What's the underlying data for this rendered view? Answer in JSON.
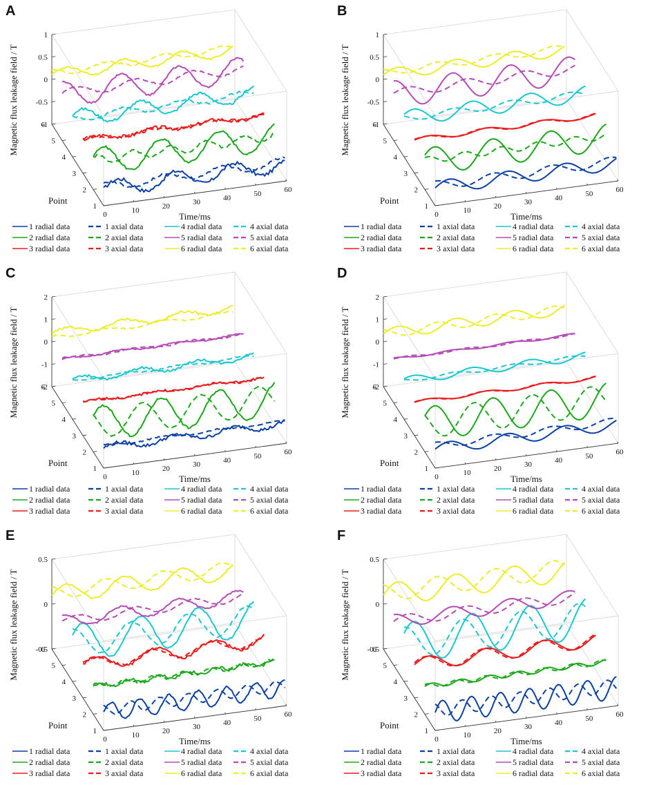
{
  "figure": {
    "labels": {
      "zlabel": "Magnetic flux leakage field  / T",
      "xlabel": "Time/ms",
      "ylabel": "Point"
    },
    "colors": {
      "1": "#0a3fa8",
      "2": "#18a818",
      "3": "#ee1a1a",
      "4": "#18c8d0",
      "5": "#b64ab6",
      "6": "#eded28"
    }
  },
  "legend": {
    "entries": [
      {
        "label": "1 radial data",
        "point": 1,
        "style": "solid"
      },
      {
        "label": "1 axial data",
        "point": 1,
        "style": "dashed"
      },
      {
        "label": "4 radial data",
        "point": 4,
        "style": "solid"
      },
      {
        "label": "4 axial data",
        "point": 4,
        "style": "dashed"
      },
      {
        "label": "2 radial data",
        "point": 2,
        "style": "solid"
      },
      {
        "label": "2 axial data",
        "point": 2,
        "style": "dashed"
      },
      {
        "label": "5 radial data",
        "point": 5,
        "style": "solid"
      },
      {
        "label": "5 axial data",
        "point": 5,
        "style": "dashed"
      },
      {
        "label": "3 radial data",
        "point": 3,
        "style": "solid"
      },
      {
        "label": "3 axial data",
        "point": 3,
        "style": "dashed"
      },
      {
        "label": "6 radial data",
        "point": 6,
        "style": "solid"
      },
      {
        "label": "6 axial data",
        "point": 6,
        "style": "dashed"
      }
    ]
  },
  "chart_data": [
    {
      "panel": "A",
      "type": "line3d",
      "xlabel": "Time/ms",
      "ylabel": "Point",
      "zlabel": "Magnetic flux leakage field  / T",
      "xlim": [
        0,
        60
      ],
      "ylim": [
        1,
        6
      ],
      "zlim": [
        -1,
        1
      ],
      "xticks": [
        "0",
        "10",
        "20",
        "30",
        "40",
        "50",
        "60"
      ],
      "yticks": [
        "1",
        "2",
        "3",
        "4",
        "5",
        "6"
      ],
      "zticks": [
        "-1",
        "-0.5",
        "0",
        "0.5",
        "1"
      ],
      "series": [
        {
          "name": "1 radial data",
          "point": 1,
          "amp": 0.35,
          "period": 19,
          "phase": 0,
          "offset": -0.25,
          "noise": 0.08
        },
        {
          "name": "1 axial data",
          "point": 1,
          "amp": 0.2,
          "period": 19,
          "phase": 1.2,
          "offset": -0.15,
          "noise": 0.05
        },
        {
          "name": "2 radial data",
          "point": 2,
          "amp": 0.6,
          "period": 19,
          "phase": 0.5,
          "offset": 0,
          "noise": 0.05
        },
        {
          "name": "2 axial data",
          "point": 2,
          "amp": 0.2,
          "period": 12,
          "phase": 1,
          "offset": 0.05,
          "noise": 0.05
        },
        {
          "name": "3 radial data",
          "point": 3,
          "amp": 0.1,
          "period": 19,
          "phase": 0,
          "offset": 0,
          "noise": 0.08
        },
        {
          "name": "3 axial data",
          "point": 3,
          "amp": 0.08,
          "period": 19,
          "phase": 0.5,
          "offset": 0,
          "noise": 0.05
        },
        {
          "name": "4 radial data",
          "point": 4,
          "amp": 0.35,
          "period": 19,
          "phase": 0.5,
          "offset": 0,
          "noise": 0.06
        },
        {
          "name": "4 axial data",
          "point": 4,
          "amp": 0.15,
          "period": 19,
          "phase": 2.5,
          "offset": 0,
          "noise": 0.05
        },
        {
          "name": "5 radial data",
          "point": 5,
          "amp": 0.55,
          "period": 19,
          "phase": 1.5,
          "offset": 0.1,
          "noise": 0.04
        },
        {
          "name": "5 axial data",
          "point": 5,
          "amp": 0.2,
          "period": 19,
          "phase": 0,
          "offset": 0.15,
          "noise": 0.03
        },
        {
          "name": "6 radial data",
          "point": 6,
          "amp": 0.25,
          "period": 19,
          "phase": 0,
          "offset": 0,
          "noise": 0.04
        },
        {
          "name": "6 axial data",
          "point": 6,
          "amp": 0.15,
          "period": 19,
          "phase": 2,
          "offset": 0.1,
          "noise": 0.03
        }
      ]
    },
    {
      "panel": "B",
      "type": "line3d",
      "xlabel": "Time/ms",
      "ylabel": "Point",
      "zlabel": "Magnetic flux leakage field  / T",
      "xlim": [
        0,
        60
      ],
      "ylim": [
        1,
        6
      ],
      "zlim": [
        -1,
        1
      ],
      "xticks": [
        "0",
        "10",
        "20",
        "30",
        "40",
        "50",
        "60"
      ],
      "yticks": [
        "1",
        "2",
        "3",
        "4",
        "5",
        "6"
      ],
      "zticks": [
        "-1",
        "-0.5",
        "0",
        "0.5",
        "1"
      ],
      "series": [
        {
          "name": "1 radial data",
          "point": 1,
          "amp": 0.3,
          "period": 19,
          "phase": 0,
          "offset": -0.2,
          "noise": 0
        },
        {
          "name": "1 axial data",
          "point": 1,
          "amp": 0.2,
          "period": 19,
          "phase": 1.5,
          "offset": -0.1,
          "noise": 0
        },
        {
          "name": "2 radial data",
          "point": 2,
          "amp": 0.6,
          "period": 19,
          "phase": 0.5,
          "offset": 0,
          "noise": 0
        },
        {
          "name": "2 axial data",
          "point": 2,
          "amp": 0.15,
          "period": 12,
          "phase": 1,
          "offset": 0.05,
          "noise": 0
        },
        {
          "name": "3 radial data",
          "point": 3,
          "amp": 0.1,
          "period": 19,
          "phase": 0,
          "offset": 0,
          "noise": 0
        },
        {
          "name": "3 axial data",
          "point": 3,
          "amp": 0.1,
          "period": 19,
          "phase": 0.3,
          "offset": 0,
          "noise": 0
        },
        {
          "name": "4 radial data",
          "point": 4,
          "amp": 0.35,
          "period": 19,
          "phase": 0.5,
          "offset": 0,
          "noise": 0
        },
        {
          "name": "4 axial data",
          "point": 4,
          "amp": 0.15,
          "period": 19,
          "phase": 2.5,
          "offset": 0,
          "noise": 0
        },
        {
          "name": "5 radial data",
          "point": 5,
          "amp": 0.6,
          "period": 19,
          "phase": 1.5,
          "offset": 0.1,
          "noise": 0
        },
        {
          "name": "5 axial data",
          "point": 5,
          "amp": 0.2,
          "period": 19,
          "phase": 0,
          "offset": 0.15,
          "noise": 0
        },
        {
          "name": "6 radial data",
          "point": 6,
          "amp": 0.25,
          "period": 19,
          "phase": 0,
          "offset": 0,
          "noise": 0
        },
        {
          "name": "6 axial data",
          "point": 6,
          "amp": 0.15,
          "period": 19,
          "phase": 2,
          "offset": 0.1,
          "noise": 0
        }
      ]
    },
    {
      "panel": "C",
      "type": "line3d",
      "xlabel": "Time/ms",
      "ylabel": "Point",
      "zlabel": "Magnetic flux leakage field  / T",
      "xlim": [
        0,
        60
      ],
      "ylim": [
        1,
        6
      ],
      "zlim": [
        -2,
        2
      ],
      "xticks": [
        "0",
        "10",
        "20",
        "30",
        "40",
        "50",
        "60"
      ],
      "yticks": [
        "1",
        "2",
        "3",
        "4",
        "5",
        "6"
      ],
      "zticks": [
        "-2",
        "-1",
        "0",
        "1",
        "2"
      ],
      "series": [
        {
          "name": "1 radial data",
          "point": 1,
          "amp": 0.3,
          "period": 19,
          "phase": 0,
          "offset": -0.2,
          "noise": 0.15
        },
        {
          "name": "1 axial data",
          "point": 1,
          "amp": 0.1,
          "period": 19,
          "phase": 1.5,
          "offset": 0,
          "noise": 0.05
        },
        {
          "name": "2 radial data",
          "point": 2,
          "amp": 1.5,
          "period": 19,
          "phase": 0.5,
          "offset": 0,
          "noise": 0.1
        },
        {
          "name": "2 axial data",
          "point": 2,
          "amp": 1.3,
          "period": 19,
          "phase": 2.5,
          "offset": 0,
          "noise": 0.05
        },
        {
          "name": "3 radial data",
          "point": 3,
          "amp": 0.1,
          "period": 19,
          "phase": 0,
          "offset": 0,
          "noise": 0.1
        },
        {
          "name": "3 axial data",
          "point": 3,
          "amp": 0.1,
          "period": 19,
          "phase": 0.3,
          "offset": 0,
          "noise": 0.05
        },
        {
          "name": "4 radial data",
          "point": 4,
          "amp": 0.3,
          "period": 19,
          "phase": 0.5,
          "offset": 0,
          "noise": 0.1
        },
        {
          "name": "4 axial data",
          "point": 4,
          "amp": 0.1,
          "period": 19,
          "phase": 2.5,
          "offset": 0,
          "noise": 0.05
        },
        {
          "name": "5 radial data",
          "point": 5,
          "amp": 0.1,
          "period": 19,
          "phase": 1.5,
          "offset": 0,
          "noise": 0.05
        },
        {
          "name": "5 axial data",
          "point": 5,
          "amp": 0.1,
          "period": 19,
          "phase": 0,
          "offset": 0,
          "noise": 0.05
        },
        {
          "name": "6 radial data",
          "point": 6,
          "amp": 0.3,
          "period": 19,
          "phase": 0,
          "offset": 0.4,
          "noise": 0.1
        },
        {
          "name": "6 axial data",
          "point": 6,
          "amp": 0.15,
          "period": 19,
          "phase": 2,
          "offset": 0,
          "noise": 0.05
        }
      ]
    },
    {
      "panel": "D",
      "type": "line3d",
      "xlabel": "Time/ms",
      "ylabel": "Point",
      "zlabel": "Magnetic flux leakage field  / T",
      "xlim": [
        0,
        60
      ],
      "ylim": [
        1,
        6
      ],
      "zlim": [
        -2,
        2
      ],
      "xticks": [
        "0",
        "10",
        "20",
        "30",
        "40",
        "50",
        "60"
      ],
      "yticks": [
        "1",
        "2",
        "3",
        "4",
        "5",
        "6"
      ],
      "zticks": [
        "-2",
        "-1",
        "0",
        "1",
        "2"
      ],
      "series": [
        {
          "name": "1 radial data",
          "point": 1,
          "amp": 0.5,
          "period": 19,
          "phase": 0,
          "offset": -0.3,
          "noise": 0
        },
        {
          "name": "1 axial data",
          "point": 1,
          "amp": 0.3,
          "period": 19,
          "phase": 1.5,
          "offset": 0,
          "noise": 0
        },
        {
          "name": "2 radial data",
          "point": 2,
          "amp": 1.5,
          "period": 19,
          "phase": 0.5,
          "offset": 0,
          "noise": 0
        },
        {
          "name": "2 axial data",
          "point": 2,
          "amp": 1.3,
          "period": 19,
          "phase": 2.5,
          "offset": 0,
          "noise": 0
        },
        {
          "name": "3 radial data",
          "point": 3,
          "amp": 0.15,
          "period": 19,
          "phase": 0,
          "offset": 0,
          "noise": 0
        },
        {
          "name": "3 axial data",
          "point": 3,
          "amp": 0.15,
          "period": 19,
          "phase": 0.3,
          "offset": 0,
          "noise": 0
        },
        {
          "name": "4 radial data",
          "point": 4,
          "amp": 0.35,
          "period": 19,
          "phase": 0.5,
          "offset": 0,
          "noise": 0
        },
        {
          "name": "4 axial data",
          "point": 4,
          "amp": 0.15,
          "period": 19,
          "phase": 2.5,
          "offset": 0,
          "noise": 0
        },
        {
          "name": "5 radial data",
          "point": 5,
          "amp": 0.1,
          "period": 19,
          "phase": 1.5,
          "offset": 0,
          "noise": 0
        },
        {
          "name": "5 axial data",
          "point": 5,
          "amp": 0.1,
          "period": 19,
          "phase": 0,
          "offset": 0,
          "noise": 0
        },
        {
          "name": "6 radial data",
          "point": 6,
          "amp": 0.5,
          "period": 19,
          "phase": 0,
          "offset": 0.3,
          "noise": 0
        },
        {
          "name": "6 axial data",
          "point": 6,
          "amp": 0.4,
          "period": 19,
          "phase": 2,
          "offset": 0.3,
          "noise": 0
        }
      ]
    },
    {
      "panel": "E",
      "type": "line3d",
      "xlabel": "Time/ms",
      "ylabel": "Point",
      "zlabel": "Magnetic flux leakage field  / T",
      "xlim": [
        0,
        60
      ],
      "ylim": [
        1,
        6
      ],
      "zlim": [
        -0.5,
        0.5
      ],
      "xticks": [
        "0",
        "10",
        "20",
        "30",
        "40",
        "50",
        "60"
      ],
      "yticks": [
        "1",
        "2",
        "3",
        "4",
        "5",
        "6"
      ],
      "zticks": [
        "-0.5",
        "0",
        "0.5"
      ],
      "series": [
        {
          "name": "1 radial data",
          "point": 1,
          "amp": 0.2,
          "period": 9.5,
          "phase": 0,
          "offset": -0.1,
          "noise": 0.02
        },
        {
          "name": "1 axial data",
          "point": 1,
          "amp": 0.12,
          "period": 9.5,
          "phase": 2,
          "offset": -0.05,
          "noise": 0.01
        },
        {
          "name": "2 radial data",
          "point": 2,
          "amp": 0.05,
          "period": 9.5,
          "phase": 0,
          "offset": 0,
          "noise": 0.03
        },
        {
          "name": "2 axial data",
          "point": 2,
          "amp": 0.05,
          "period": 9.5,
          "phase": 1,
          "offset": 0,
          "noise": 0.02
        },
        {
          "name": "3 radial data",
          "point": 3,
          "amp": 0.15,
          "period": 19,
          "phase": 0,
          "offset": 0,
          "noise": 0.03
        },
        {
          "name": "3 axial data",
          "point": 3,
          "amp": 0.12,
          "period": 19,
          "phase": 0.3,
          "offset": 0,
          "noise": 0.02
        },
        {
          "name": "4 radial data",
          "point": 4,
          "amp": 0.4,
          "period": 19,
          "phase": 0.5,
          "offset": 0,
          "noise": 0.02
        },
        {
          "name": "4 axial data",
          "point": 4,
          "amp": 0.3,
          "period": 19,
          "phase": 1.5,
          "offset": 0,
          "noise": 0.02
        },
        {
          "name": "5 radial data",
          "point": 5,
          "amp": 0.15,
          "period": 19,
          "phase": 1.5,
          "offset": 0,
          "noise": 0.02
        },
        {
          "name": "5 axial data",
          "point": 5,
          "amp": 0.1,
          "period": 19,
          "phase": 0,
          "offset": 0,
          "noise": 0.01
        },
        {
          "name": "6 radial data",
          "point": 6,
          "amp": 0.2,
          "period": 19,
          "phase": 0,
          "offset": 0.1,
          "noise": 0.02
        },
        {
          "name": "6 axial data",
          "point": 6,
          "amp": 0.15,
          "period": 19,
          "phase": 2,
          "offset": 0.15,
          "noise": 0.01
        }
      ]
    },
    {
      "panel": "F",
      "type": "line3d",
      "xlabel": "Time/ms",
      "ylabel": "Point",
      "zlabel": "Magnetic flux leakage field  / T",
      "xlim": [
        0,
        60
      ],
      "ylim": [
        1,
        6
      ],
      "zlim": [
        -0.5,
        0.5
      ],
      "xticks": [
        "0",
        "10",
        "20",
        "30",
        "40",
        "50",
        "60"
      ],
      "yticks": [
        "1",
        "2",
        "3",
        "4",
        "5",
        "6"
      ],
      "zticks": [
        "-0.5",
        "0",
        "0.5"
      ],
      "series": [
        {
          "name": "1 radial data",
          "point": 1,
          "amp": 0.25,
          "period": 9.5,
          "phase": 0,
          "offset": -0.1,
          "noise": 0
        },
        {
          "name": "1 axial data",
          "point": 1,
          "amp": 0.15,
          "period": 9.5,
          "phase": 2,
          "offset": -0.05,
          "noise": 0
        },
        {
          "name": "2 radial data",
          "point": 2,
          "amp": 0.05,
          "period": 9.5,
          "phase": 0,
          "offset": 0,
          "noise": 0
        },
        {
          "name": "2 axial data",
          "point": 2,
          "amp": 0.05,
          "period": 9.5,
          "phase": 1,
          "offset": 0,
          "noise": 0
        },
        {
          "name": "3 radial data",
          "point": 3,
          "amp": 0.15,
          "period": 19,
          "phase": 0,
          "offset": 0,
          "noise": 0
        },
        {
          "name": "3 axial data",
          "point": 3,
          "amp": 0.15,
          "period": 19,
          "phase": 0.3,
          "offset": 0,
          "noise": 0
        },
        {
          "name": "4 radial data",
          "point": 4,
          "amp": 0.45,
          "period": 19,
          "phase": 0.5,
          "offset": 0,
          "noise": 0
        },
        {
          "name": "4 axial data",
          "point": 4,
          "amp": 0.35,
          "period": 19,
          "phase": 1.5,
          "offset": 0,
          "noise": 0
        },
        {
          "name": "5 radial data",
          "point": 5,
          "amp": 0.15,
          "period": 19,
          "phase": 1.5,
          "offset": 0,
          "noise": 0
        },
        {
          "name": "5 axial data",
          "point": 5,
          "amp": 0.12,
          "period": 19,
          "phase": 0,
          "offset": 0,
          "noise": 0
        },
        {
          "name": "6 radial data",
          "point": 6,
          "amp": 0.25,
          "period": 19,
          "phase": 0,
          "offset": 0.1,
          "noise": 0
        },
        {
          "name": "6 axial data",
          "point": 6,
          "amp": 0.2,
          "period": 19,
          "phase": 2,
          "offset": 0.15,
          "noise": 0
        }
      ]
    }
  ]
}
